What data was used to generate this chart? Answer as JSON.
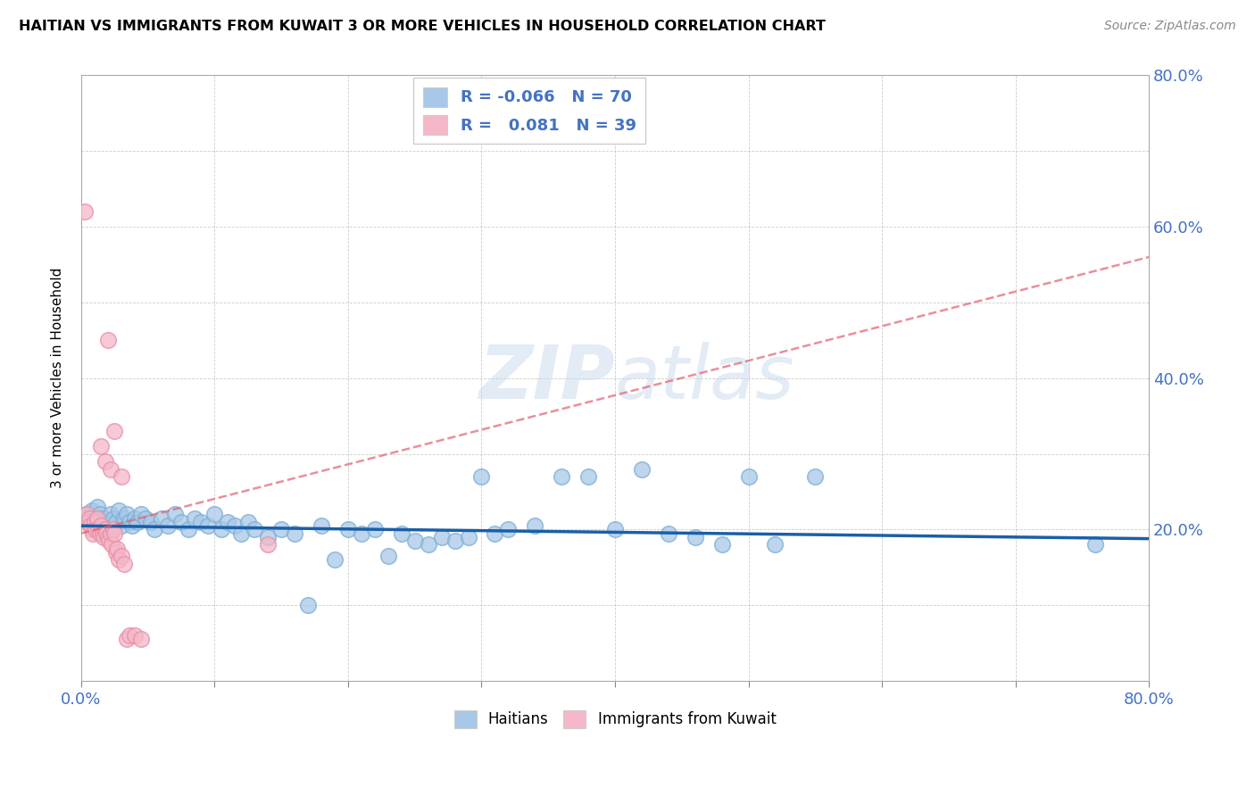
{
  "title": "HAITIAN VS IMMIGRANTS FROM KUWAIT 3 OR MORE VEHICLES IN HOUSEHOLD CORRELATION CHART",
  "source": "Source: ZipAtlas.com",
  "ylabel": "3 or more Vehicles in Household",
  "xlim": [
    0.0,
    0.8
  ],
  "ylim": [
    0.0,
    0.8
  ],
  "xticks": [
    0.0,
    0.1,
    0.2,
    0.3,
    0.4,
    0.5,
    0.6,
    0.7,
    0.8
  ],
  "yticks": [
    0.0,
    0.1,
    0.2,
    0.3,
    0.4,
    0.5,
    0.6,
    0.7,
    0.8
  ],
  "blue_color": "#a8c8e8",
  "blue_edge_color": "#7bafd4",
  "pink_color": "#f4b8c8",
  "pink_edge_color": "#e890a8",
  "blue_line_color": "#1a5fa8",
  "pink_line_color": "#e06070",
  "watermark_color": "#c8d8ec",
  "legend_r_blue": "-0.066",
  "legend_n_blue": "70",
  "legend_r_pink": "0.081",
  "legend_n_pink": "39",
  "blue_scatter_x": [
    0.004,
    0.006,
    0.008,
    0.01,
    0.012,
    0.014,
    0.016,
    0.018,
    0.02,
    0.022,
    0.024,
    0.026,
    0.028,
    0.03,
    0.032,
    0.034,
    0.036,
    0.038,
    0.04,
    0.042,
    0.045,
    0.048,
    0.052,
    0.055,
    0.06,
    0.065,
    0.07,
    0.075,
    0.08,
    0.085,
    0.09,
    0.095,
    0.1,
    0.105,
    0.11,
    0.115,
    0.12,
    0.125,
    0.13,
    0.14,
    0.15,
    0.16,
    0.17,
    0.18,
    0.19,
    0.2,
    0.21,
    0.22,
    0.23,
    0.24,
    0.25,
    0.26,
    0.27,
    0.28,
    0.29,
    0.3,
    0.31,
    0.32,
    0.34,
    0.36,
    0.38,
    0.4,
    0.42,
    0.44,
    0.46,
    0.48,
    0.5,
    0.52,
    0.55,
    0.76
  ],
  "blue_scatter_y": [
    0.22,
    0.21,
    0.225,
    0.215,
    0.23,
    0.22,
    0.215,
    0.21,
    0.205,
    0.22,
    0.215,
    0.21,
    0.225,
    0.205,
    0.215,
    0.22,
    0.21,
    0.205,
    0.215,
    0.21,
    0.22,
    0.215,
    0.21,
    0.2,
    0.215,
    0.205,
    0.22,
    0.21,
    0.2,
    0.215,
    0.21,
    0.205,
    0.22,
    0.2,
    0.21,
    0.205,
    0.195,
    0.21,
    0.2,
    0.19,
    0.2,
    0.195,
    0.1,
    0.205,
    0.16,
    0.2,
    0.195,
    0.2,
    0.165,
    0.195,
    0.185,
    0.18,
    0.19,
    0.185,
    0.19,
    0.27,
    0.195,
    0.2,
    0.205,
    0.27,
    0.27,
    0.2,
    0.28,
    0.195,
    0.19,
    0.18,
    0.27,
    0.18,
    0.27,
    0.18
  ],
  "pink_scatter_x": [
    0.003,
    0.004,
    0.005,
    0.006,
    0.007,
    0.008,
    0.009,
    0.01,
    0.011,
    0.012,
    0.013,
    0.014,
    0.015,
    0.016,
    0.017,
    0.018,
    0.019,
    0.02,
    0.021,
    0.022,
    0.023,
    0.024,
    0.025,
    0.026,
    0.027,
    0.028,
    0.03,
    0.032,
    0.034,
    0.036,
    0.04,
    0.045,
    0.02,
    0.025,
    0.015,
    0.018,
    0.022,
    0.03,
    0.14
  ],
  "pink_scatter_y": [
    0.62,
    0.22,
    0.21,
    0.215,
    0.205,
    0.2,
    0.195,
    0.21,
    0.2,
    0.215,
    0.2,
    0.195,
    0.205,
    0.195,
    0.19,
    0.2,
    0.195,
    0.19,
    0.185,
    0.195,
    0.18,
    0.2,
    0.195,
    0.17,
    0.175,
    0.16,
    0.165,
    0.155,
    0.055,
    0.06,
    0.06,
    0.055,
    0.45,
    0.33,
    0.31,
    0.29,
    0.28,
    0.27,
    0.18
  ],
  "blue_trend_x": [
    0.0,
    0.8
  ],
  "blue_trend_y": [
    0.205,
    0.188
  ],
  "pink_trend_x": [
    0.0,
    0.8
  ],
  "pink_trend_y": [
    0.195,
    0.56
  ]
}
